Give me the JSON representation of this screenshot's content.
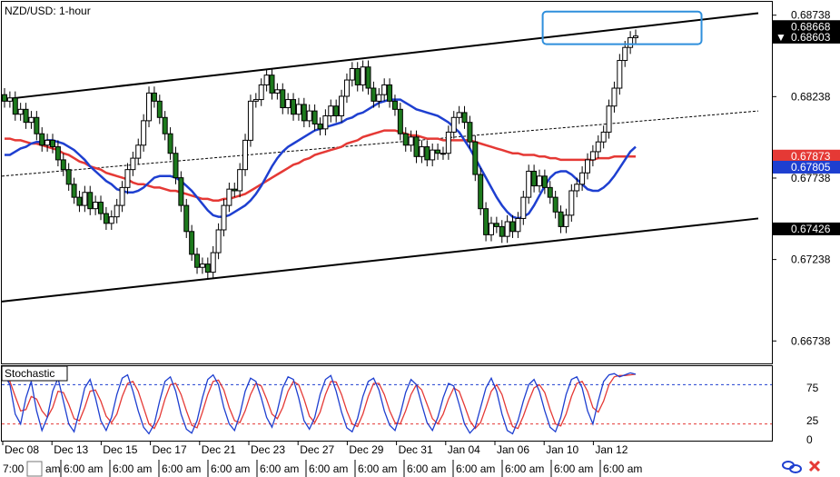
{
  "chart_data": {
    "type": "line",
    "title": "NZD/USD: 1-hour",
    "price_axis": {
      "ylim": [
        0.666,
        0.6882
      ],
      "tick_labels": [
        "0.68738",
        "0.68238",
        "0.67738",
        "0.67238",
        "0.66738"
      ],
      "tick_values": [
        0.68738,
        0.68238,
        0.67738,
        0.67238,
        0.66738
      ],
      "grid": false
    },
    "price_tags": [
      {
        "label": "0.68668",
        "value": 0.68668,
        "bg": "#000000",
        "fg": "#ffffff",
        "marker": ""
      },
      {
        "label": "0.68603",
        "value": 0.68603,
        "bg": "#000000",
        "fg": "#ffffff",
        "marker": "▼"
      },
      {
        "label": "0.67873",
        "value": 0.67873,
        "bg": "#e53935",
        "fg": "#ffffff",
        "marker": ""
      },
      {
        "label": "0.67805",
        "value": 0.67805,
        "bg": "#1e3fd0",
        "fg": "#ffffff",
        "marker": ""
      },
      {
        "label": "0.67426",
        "value": 0.67426,
        "bg": "#000000",
        "fg": "#ffffff",
        "marker": ""
      }
    ],
    "date_labels": [
      "Dec 08",
      "Dec 13",
      "Dec 15",
      "Dec 17",
      "Dec 21",
      "Dec 23",
      "Dec 27",
      "Dec 29",
      "Dec 31",
      "Jan 04",
      "Jan 06",
      "Jan 10",
      "Jan 12"
    ],
    "time_labels": [
      "7:00",
      "6:00 am",
      "6:00 am",
      "6:00 am",
      "6:00 am",
      "6:00 am",
      "6:00 am",
      "6:00 am",
      "6:00 am",
      "6:00 am",
      "6:00 am",
      "6:00 am",
      "6:00 am",
      "am"
    ],
    "close_series": [
      0.6821,
      0.6823,
      0.6813,
      0.6816,
      0.6808,
      0.6811,
      0.6801,
      0.6794,
      0.6797,
      0.6793,
      0.6785,
      0.6779,
      0.677,
      0.6762,
      0.6757,
      0.6765,
      0.6755,
      0.6759,
      0.6752,
      0.6746,
      0.675,
      0.6757,
      0.6768,
      0.6779,
      0.6786,
      0.6794,
      0.6809,
      0.6826,
      0.6821,
      0.6811,
      0.6801,
      0.6789,
      0.6774,
      0.6757,
      0.6741,
      0.6727,
      0.6719,
      0.6721,
      0.6716,
      0.6728,
      0.6742,
      0.6757,
      0.6767,
      0.6766,
      0.6779,
      0.6797,
      0.6821,
      0.6822,
      0.6831,
      0.6837,
      0.6826,
      0.6828,
      0.6817,
      0.6822,
      0.6813,
      0.6819,
      0.6809,
      0.6815,
      0.6807,
      0.6804,
      0.6812,
      0.6818,
      0.6812,
      0.6824,
      0.6834,
      0.6841,
      0.6831,
      0.6842,
      0.6829,
      0.6821,
      0.6825,
      0.6831,
      0.6821,
      0.6816,
      0.6801,
      0.6794,
      0.6799,
      0.6787,
      0.6793,
      0.6785,
      0.6791,
      0.6789,
      0.6789,
      0.6802,
      0.6811,
      0.6814,
      0.6808,
      0.6796,
      0.6776,
      0.6755,
      0.6739,
      0.6746,
      0.6744,
      0.6738,
      0.6747,
      0.6741,
      0.6749,
      0.6762,
      0.6778,
      0.6769,
      0.6775,
      0.6768,
      0.6762,
      0.6753,
      0.6744,
      0.6751,
      0.6766,
      0.677,
      0.6777,
      0.6785,
      0.679,
      0.6796,
      0.6802,
      0.6818,
      0.6829,
      0.6846,
      0.6854,
      0.686,
      0.6861
    ],
    "ma_red": [
      0.6798,
      0.6798,
      0.6797,
      0.6797,
      0.6796,
      0.6795,
      0.6795,
      0.6794,
      0.6793,
      0.6792,
      0.6791,
      0.6789,
      0.6788,
      0.6786,
      0.6784,
      0.6783,
      0.6781,
      0.678,
      0.6779,
      0.6777,
      0.6776,
      0.6775,
      0.6774,
      0.6773,
      0.6771,
      0.677,
      0.677,
      0.6769,
      0.6768,
      0.6768,
      0.6767,
      0.6766,
      0.6766,
      0.6765,
      0.6764,
      0.6763,
      0.6762,
      0.6761,
      0.6761,
      0.676,
      0.676,
      0.6761,
      0.6761,
      0.6762,
      0.6763,
      0.6764,
      0.6766,
      0.6768,
      0.677,
      0.6772,
      0.6774,
      0.6776,
      0.6778,
      0.678,
      0.6782,
      0.6783,
      0.6785,
      0.6786,
      0.6788,
      0.6789,
      0.679,
      0.6791,
      0.6792,
      0.6793,
      0.6795,
      0.6796,
      0.6797,
      0.6799,
      0.68,
      0.6801,
      0.6802,
      0.6803,
      0.6803,
      0.6803,
      0.6802,
      0.6801,
      0.68,
      0.68,
      0.6799,
      0.6798,
      0.6798,
      0.6798,
      0.6797,
      0.6797,
      0.6797,
      0.6797,
      0.6797,
      0.6797,
      0.6796,
      0.6795,
      0.6794,
      0.6793,
      0.6792,
      0.6791,
      0.679,
      0.6789,
      0.6789,
      0.6788,
      0.6788,
      0.6788,
      0.6787,
      0.6787,
      0.6786,
      0.6786,
      0.6785,
      0.6785,
      0.6785,
      0.6785,
      0.6785,
      0.6785,
      0.6785,
      0.6786,
      0.6786,
      0.6786,
      0.6787,
      0.6787,
      0.6787,
      0.6787,
      0.6787
    ],
    "ma_blue": [
      0.6788,
      0.6788,
      0.679,
      0.6792,
      0.6793,
      0.6795,
      0.6796,
      0.6796,
      0.6797,
      0.6797,
      0.6796,
      0.6795,
      0.6793,
      0.6791,
      0.6788,
      0.6785,
      0.6781,
      0.6778,
      0.6775,
      0.6772,
      0.677,
      0.6767,
      0.6766,
      0.6765,
      0.6765,
      0.6766,
      0.6768,
      0.6771,
      0.6774,
      0.6775,
      0.6775,
      0.6775,
      0.6774,
      0.6772,
      0.6769,
      0.6766,
      0.6762,
      0.6758,
      0.6754,
      0.6751,
      0.675,
      0.675,
      0.6751,
      0.6753,
      0.6755,
      0.6757,
      0.676,
      0.6764,
      0.6769,
      0.6775,
      0.6781,
      0.6786,
      0.679,
      0.6793,
      0.6795,
      0.6797,
      0.6799,
      0.6801,
      0.6803,
      0.6804,
      0.6805,
      0.6806,
      0.6807,
      0.6808,
      0.681,
      0.6811,
      0.6813,
      0.6814,
      0.6816,
      0.6818,
      0.682,
      0.6821,
      0.6822,
      0.6822,
      0.6822,
      0.682,
      0.6818,
      0.6816,
      0.6815,
      0.6814,
      0.6813,
      0.6812,
      0.681,
      0.6808,
      0.6805,
      0.6802,
      0.6797,
      0.6792,
      0.6786,
      0.678,
      0.6774,
      0.6768,
      0.6762,
      0.6757,
      0.6753,
      0.675,
      0.6749,
      0.675,
      0.6752,
      0.6757,
      0.6763,
      0.6769,
      0.6774,
      0.6777,
      0.6778,
      0.6778,
      0.6776,
      0.6773,
      0.677,
      0.6767,
      0.6766,
      0.6766,
      0.6768,
      0.6771,
      0.6775,
      0.678,
      0.6785,
      0.679,
      0.6793
    ],
    "trend_lines": {
      "upper": [
        [
          0,
          0.6822
        ],
        [
          1,
          0.6875
        ]
      ],
      "middle": [
        [
          0,
          0.6775
        ],
        [
          1,
          0.6815
        ]
      ],
      "lower": [
        [
          0,
          0.6698
        ],
        [
          1,
          0.6749
        ]
      ]
    },
    "highlight_box": {
      "price_top": 0.6876,
      "price_bottom": 0.6856,
      "start": 0.715,
      "end": 0.925
    },
    "stochastic": {
      "label": "Stochastic",
      "ylim": [
        0,
        100
      ],
      "tick_labels": [
        "75",
        "25",
        "0"
      ],
      "tick_values": [
        75,
        25,
        0
      ],
      "levels": [
        80,
        20
      ],
      "k": [
        95,
        80,
        35,
        20,
        60,
        85,
        40,
        10,
        30,
        70,
        90,
        55,
        20,
        8,
        40,
        75,
        88,
        60,
        25,
        10,
        30,
        65,
        90,
        95,
        70,
        40,
        15,
        5,
        20,
        55,
        85,
        92,
        70,
        35,
        12,
        6,
        25,
        60,
        88,
        95,
        80,
        45,
        20,
        10,
        35,
        70,
        90,
        85,
        60,
        30,
        15,
        40,
        75,
        92,
        88,
        60,
        25,
        12,
        30,
        65,
        88,
        94,
        70,
        38,
        14,
        8,
        28,
        62,
        85,
        90,
        72,
        40,
        18,
        10,
        35,
        68,
        88,
        80,
        50,
        22,
        10,
        30,
        60,
        82,
        78,
        50,
        20,
        6,
        15,
        45,
        75,
        90,
        70,
        35,
        10,
        5,
        25,
        55,
        80,
        88,
        70,
        40,
        15,
        8,
        30,
        65,
        88,
        92,
        75,
        40,
        20,
        55,
        85,
        95,
        97,
        92,
        95,
        98,
        96
      ],
      "d": [
        90,
        85,
        62,
        40,
        42,
        62,
        58,
        40,
        30,
        45,
        70,
        68,
        50,
        28,
        25,
        45,
        70,
        72,
        55,
        32,
        22,
        35,
        62,
        82,
        85,
        70,
        45,
        20,
        13,
        30,
        58,
        80,
        82,
        65,
        40,
        18,
        14,
        38,
        65,
        85,
        87,
        72,
        45,
        25,
        22,
        40,
        65,
        82,
        78,
        58,
        35,
        28,
        45,
        70,
        85,
        80,
        58,
        32,
        22,
        38,
        65,
        85,
        84,
        65,
        40,
        20,
        16,
        35,
        62,
        82,
        82,
        65,
        40,
        22,
        20,
        40,
        65,
        80,
        72,
        50,
        28,
        20,
        35,
        58,
        75,
        70,
        48,
        25,
        13,
        22,
        45,
        70,
        80,
        65,
        38,
        16,
        13,
        32,
        55,
        75,
        80,
        68,
        42,
        20,
        17,
        35,
        62,
        82,
        85,
        70,
        45,
        38,
        55,
        80,
        92,
        94,
        94,
        95,
        96
      ]
    }
  },
  "ui": {
    "title": "NZD/USD: 1-hour",
    "stoch_label": "Stochastic"
  }
}
